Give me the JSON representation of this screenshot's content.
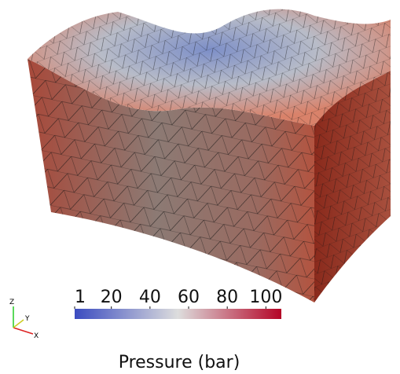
{
  "colorbar": {
    "title": "Pressure (bar)",
    "range": [
      1,
      108
    ],
    "ticks": [
      1,
      20,
      40,
      60,
      80,
      100
    ],
    "colors": [
      "#3b4cc0",
      "#dddddd",
      "#b40426"
    ]
  },
  "axes": {
    "z": "Z",
    "y": "Y",
    "x": "X"
  }
}
